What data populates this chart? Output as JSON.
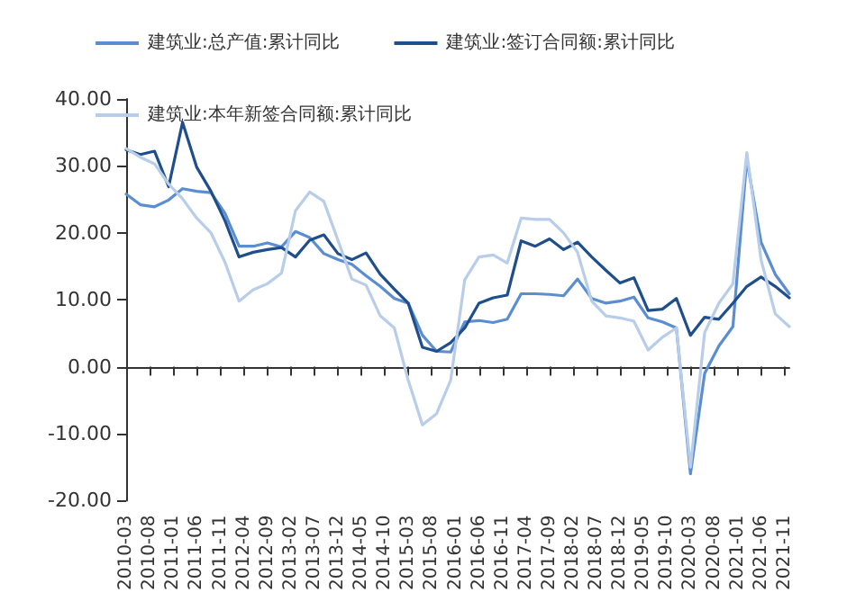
{
  "chart_data": {
    "type": "line",
    "x": [
      "2010-03",
      "2010-06",
      "2010-09",
      "2010-12",
      "2011-03",
      "2011-06",
      "2011-09",
      "2011-12",
      "2012-03",
      "2012-06",
      "2012-09",
      "2012-12",
      "2013-03",
      "2013-06",
      "2013-09",
      "2013-12",
      "2014-03",
      "2014-06",
      "2014-09",
      "2014-12",
      "2015-03",
      "2015-06",
      "2015-09",
      "2015-12",
      "2016-03",
      "2016-06",
      "2016-09",
      "2016-12",
      "2017-03",
      "2017-06",
      "2017-09",
      "2017-12",
      "2018-03",
      "2018-06",
      "2018-09",
      "2018-12",
      "2019-03",
      "2019-06",
      "2019-09",
      "2019-12",
      "2020-03",
      "2020-06",
      "2020-09",
      "2020-12",
      "2021-03",
      "2021-06",
      "2021-09",
      "2021-12"
    ],
    "series": [
      {
        "name": "建筑业:总产值:累计同比",
        "color": "#5a8ed0",
        "values": [
          25.8,
          24.2,
          23.9,
          24.9,
          26.6,
          26.2,
          26.0,
          22.9,
          18.0,
          18.0,
          18.5,
          17.9,
          20.2,
          19.3,
          16.9,
          16.0,
          15.3,
          13.6,
          12.0,
          10.2,
          9.5,
          4.7,
          2.3,
          2.2,
          6.7,
          6.9,
          6.6,
          7.1,
          10.9,
          10.9,
          10.8,
          10.6,
          13.1,
          10.2,
          9.5,
          9.8,
          10.4,
          7.3,
          6.7,
          5.8,
          -16.0,
          -1.0,
          3.1,
          6.0,
          31.0,
          18.6,
          13.8,
          10.9
        ]
      },
      {
        "name": "建筑业:签订合同额:累计同比",
        "color": "#1f4e8c",
        "values": [
          32.4,
          31.7,
          32.2,
          26.9,
          36.5,
          29.8,
          26.2,
          21.8,
          16.4,
          17.1,
          17.5,
          17.8,
          16.4,
          18.9,
          19.7,
          16.9,
          16.0,
          17.0,
          13.8,
          11.6,
          9.5,
          2.9,
          2.3,
          3.6,
          5.8,
          9.5,
          10.3,
          10.7,
          18.8,
          18.0,
          19.1,
          17.5,
          18.6,
          16.4,
          14.4,
          12.5,
          13.3,
          8.4,
          8.6,
          10.2,
          4.7,
          7.4,
          7.1,
          9.5,
          12.0,
          13.4,
          12.0,
          10.3
        ]
      },
      {
        "name": "建筑业:本年新签合同额:累计同比",
        "color": "#b7cde9",
        "values": [
          32.6,
          31.3,
          30.3,
          27.3,
          25.1,
          22.2,
          20.0,
          15.6,
          9.8,
          11.5,
          12.4,
          14.0,
          23.3,
          26.1,
          24.7,
          18.9,
          13.1,
          12.2,
          7.6,
          5.8,
          -2.0,
          -8.7,
          -7.0,
          -2.0,
          13.0,
          16.4,
          16.7,
          15.5,
          22.2,
          22.0,
          22.0,
          20.0,
          17.1,
          9.8,
          7.6,
          7.3,
          6.8,
          2.5,
          4.4,
          5.8,
          -15.0,
          5.1,
          9.5,
          12.4,
          32.0,
          16.0,
          7.9,
          6.0
        ]
      }
    ],
    "xlim": [
      "2010-03",
      "2021-12"
    ],
    "xticks": [
      "2010-03",
      "2010-08",
      "2011-01",
      "2011-06",
      "2011-11",
      "2012-04",
      "2012-09",
      "2013-02",
      "2013-07",
      "2013-12",
      "2014-05",
      "2014-10",
      "2015-03",
      "2015-08",
      "2016-01",
      "2016-06",
      "2016-11",
      "2017-04",
      "2017-09",
      "2018-02",
      "2018-07",
      "2018-12",
      "2019-05",
      "2019-10",
      "2020-03",
      "2020-08",
      "2021-01",
      "2021-06",
      "2021-11"
    ],
    "ylim": [
      -20,
      40
    ],
    "yticks": [
      {
        "value": -20,
        "label": "-20.00"
      },
      {
        "value": -10,
        "label": "-10.00"
      },
      {
        "value": 0,
        "label": "0.00"
      },
      {
        "value": 10,
        "label": "10.00"
      },
      {
        "value": 20,
        "label": "20.00"
      },
      {
        "value": 30,
        "label": "30.00"
      },
      {
        "value": 40,
        "label": "40.00"
      }
    ],
    "legend": "top",
    "marker": "none",
    "line_style": "solid"
  }
}
